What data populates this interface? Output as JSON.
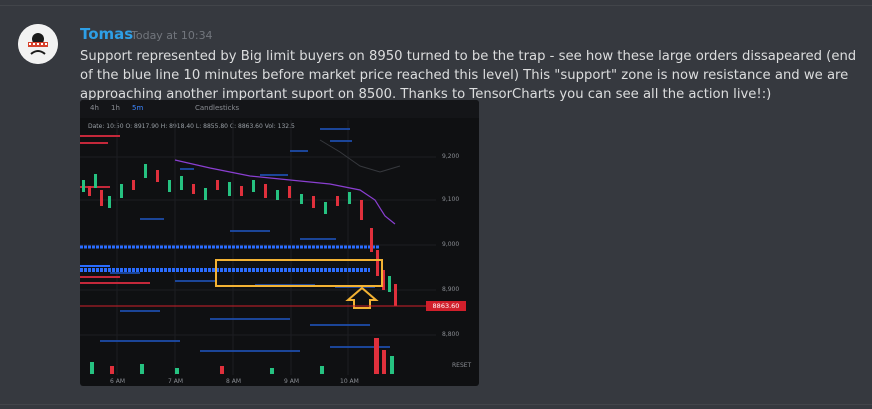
{
  "message": {
    "author": "Tomas",
    "timestamp": "Today at 10:34",
    "text": "Support represented by Big limit buyers on 8950 turned to be the trap - see how these large orders dissapeared (end of the blue line 10 minutes before market price reached this level) This \"support\" zone is now resistance and we are approaching another important suport on 8500. Thanks to TensorCharts you can see all the action live!:)"
  },
  "chart": {
    "tabs": [
      "4h",
      "1h",
      "5m",
      "Candlesticks"
    ],
    "active_tab": "5m",
    "info_line": "Date: 10:50  O: 8917.90  H: 8918.40  L: 8855.80  C: 8863.60  Vol: 132.5",
    "y_labels": [
      "9,200",
      "9,100",
      "9,000",
      "8,900",
      "8,800"
    ],
    "x_labels": [
      "6 AM",
      "7 AM",
      "8 AM",
      "9 AM",
      "10 AM"
    ],
    "price_badge": "8863.60",
    "reset_label": "RESET",
    "colors": {
      "up": "#26c281",
      "down": "#e0303c",
      "bid_wall": "#2a6cff",
      "highlight_box": "#f3b233",
      "moving_average": "#8a3fd1"
    }
  }
}
